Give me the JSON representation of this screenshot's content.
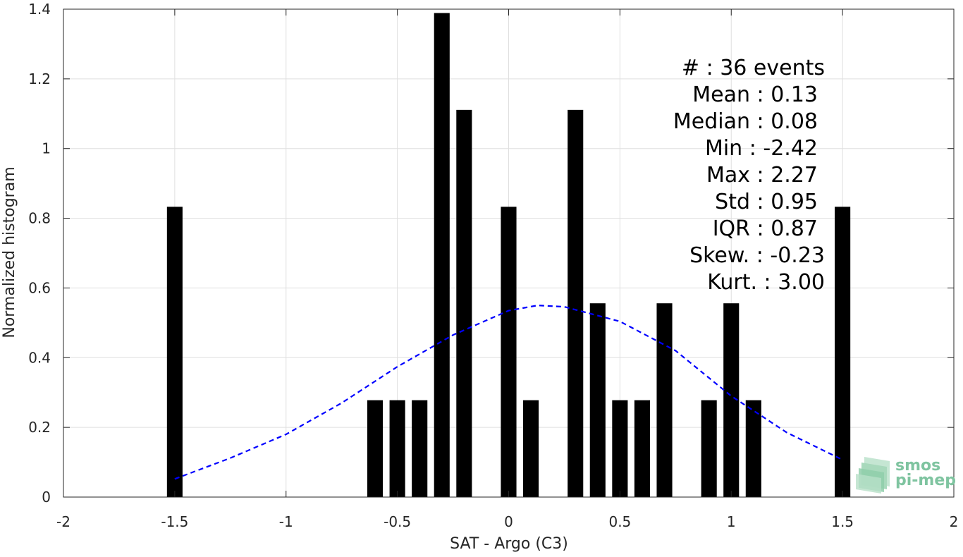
{
  "chart_data": {
    "type": "bar",
    "title": "",
    "xlabel": "SAT - Argo (C3)",
    "ylabel": "Normalized histogram",
    "xlim": [
      -2,
      2
    ],
    "ylim": [
      0,
      1.4
    ],
    "xticks": [
      "-2",
      "-1.5",
      "-1",
      "-0.5",
      "0",
      "0.5",
      "1",
      "1.5",
      "2"
    ],
    "yticks": [
      "0",
      "0.2",
      "0.4",
      "0.6",
      "0.8",
      "1",
      "1.2",
      "1.4"
    ],
    "grid": true,
    "bin_width": 0.07,
    "bars": [
      {
        "x": -1.5,
        "value": 0.833
      },
      {
        "x": -0.6,
        "value": 0.278
      },
      {
        "x": -0.5,
        "value": 0.278
      },
      {
        "x": -0.4,
        "value": 0.278
      },
      {
        "x": -0.3,
        "value": 1.389
      },
      {
        "x": -0.2,
        "value": 1.111
      },
      {
        "x": 0.0,
        "value": 0.833
      },
      {
        "x": 0.1,
        "value": 0.278
      },
      {
        "x": 0.3,
        "value": 1.111
      },
      {
        "x": 0.4,
        "value": 0.556
      },
      {
        "x": 0.5,
        "value": 0.278
      },
      {
        "x": 0.6,
        "value": 0.278
      },
      {
        "x": 0.7,
        "value": 0.556
      },
      {
        "x": 0.9,
        "value": 0.278
      },
      {
        "x": 1.0,
        "value": 0.556
      },
      {
        "x": 1.1,
        "value": 0.278
      },
      {
        "x": 1.5,
        "value": 0.833
      }
    ],
    "fit_curve": {
      "type": "gaussian",
      "style": "dashed",
      "color": "#0000ff",
      "mean": 0.13,
      "peak": 0.55,
      "x_range": [
        -1.5,
        1.5
      ],
      "x_points": [
        -1.5,
        -1.25,
        -1.0,
        -0.75,
        -0.5,
        -0.25,
        0.0,
        0.13,
        0.25,
        0.5,
        0.75,
        1.0,
        1.25,
        1.5
      ],
      "y_points": [
        0.052,
        0.112,
        0.18,
        0.27,
        0.374,
        0.465,
        0.535,
        0.55,
        0.546,
        0.504,
        0.42,
        0.29,
        0.185,
        0.107
      ]
    },
    "bar_color": "#000000"
  },
  "stats": [
    "#  : 36 events",
    "Mean : 0.13",
    "Median : 0.08",
    "Min : -2.42",
    "Max : 2.27",
    "Std : 0.95",
    "IQR : 0.87",
    "Skew. : -0.23",
    "Kurt. : 3.00"
  ],
  "logo": {
    "line1": "smos",
    "line2": "pi-mep",
    "color": "#7fc4a0"
  }
}
